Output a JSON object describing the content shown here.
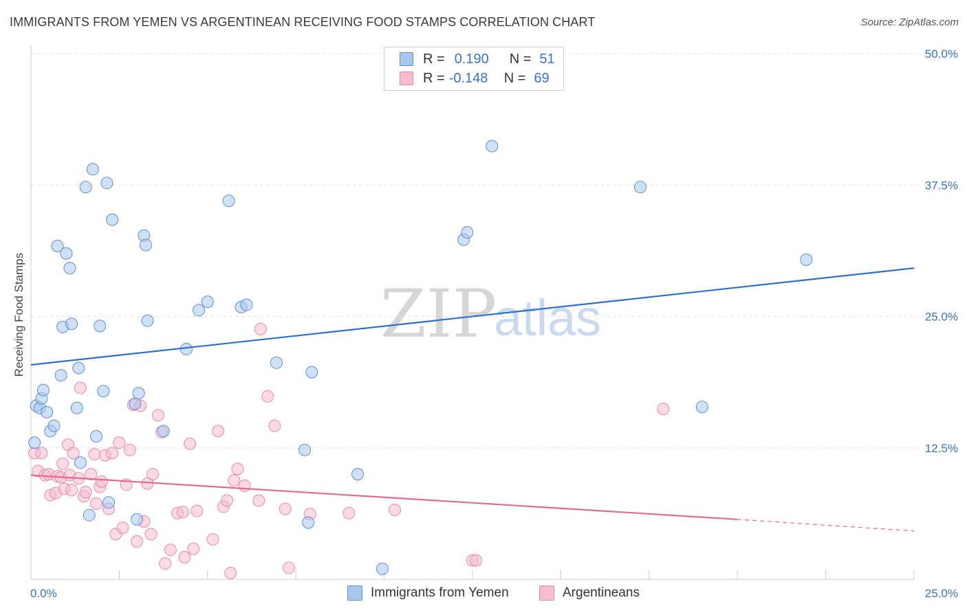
{
  "title": "IMMIGRANTS FROM YEMEN VS ARGENTINEAN RECEIVING FOOD STAMPS CORRELATION CHART",
  "source": "Source: ZipAtlas.com",
  "watermark": {
    "zip": "ZIP",
    "atlas": "atlas"
  },
  "legend_top": {
    "rows": [
      {
        "r_label": "R =",
        "r_value": "0.190",
        "n_label": "N =",
        "n_value": "51",
        "color": "#a9c8ef"
      },
      {
        "r_label": "R =",
        "r_value": "-0.148",
        "n_label": "N =",
        "n_value": "69",
        "color": "#f6bcd0"
      }
    ]
  },
  "legend_bottom": [
    {
      "label": "Immigrants from Yemen",
      "color": "#a9c8ef"
    },
    {
      "label": "Argentineans",
      "color": "#f6bcd0"
    }
  ],
  "chart_data": {
    "type": "scatter",
    "title": "IMMIGRANTS FROM YEMEN VS ARGENTINEAN RECEIVING FOOD STAMPS CORRELATION CHART",
    "xlabel": "",
    "ylabel": "Receiving Food Stamps",
    "xlim": [
      0,
      25
    ],
    "ylim": [
      0,
      50
    ],
    "x_tick_labels": [
      "0.0%",
      "25.0%"
    ],
    "y_ticks": [
      12.5,
      25.0,
      37.5,
      50.0
    ],
    "y_tick_labels": [
      "12.5%",
      "25.0%",
      "37.5%",
      "50.0%"
    ],
    "grid": "horizontal dashed",
    "colors": {
      "yemen": "#5b8fd6",
      "yemen_fill": "#a9c8ef",
      "arg": "#e889aa",
      "arg_fill": "#f6bcd0",
      "yemen_line": "#2f6fcc",
      "arg_line": "#e06a94"
    },
    "series": [
      {
        "name": "Immigrants from Yemen",
        "trend": {
          "x": [
            0,
            25
          ],
          "y": [
            20.4,
            29.6
          ]
        },
        "points": [
          [
            0.1,
            13.0
          ],
          [
            0.15,
            16.5
          ],
          [
            0.25,
            16.3
          ],
          [
            0.3,
            17.2
          ],
          [
            0.35,
            18.0
          ],
          [
            0.45,
            15.9
          ],
          [
            0.55,
            14.1
          ],
          [
            0.65,
            14.6
          ],
          [
            0.75,
            31.7
          ],
          [
            0.85,
            19.4
          ],
          [
            0.9,
            24.0
          ],
          [
            1.0,
            31.0
          ],
          [
            1.1,
            29.6
          ],
          [
            1.15,
            24.3
          ],
          [
            1.3,
            16.3
          ],
          [
            1.35,
            20.1
          ],
          [
            1.4,
            11.1
          ],
          [
            1.55,
            37.3
          ],
          [
            1.65,
            6.1
          ],
          [
            1.75,
            39.0
          ],
          [
            1.85,
            13.6
          ],
          [
            1.95,
            24.1
          ],
          [
            2.05,
            17.9
          ],
          [
            2.15,
            37.7
          ],
          [
            2.2,
            7.3
          ],
          [
            2.3,
            34.2
          ],
          [
            2.95,
            16.7
          ],
          [
            3.0,
            5.7
          ],
          [
            3.05,
            17.7
          ],
          [
            3.2,
            32.7
          ],
          [
            3.25,
            31.8
          ],
          [
            3.3,
            24.6
          ],
          [
            3.75,
            14.1
          ],
          [
            4.4,
            21.9
          ],
          [
            4.75,
            25.6
          ],
          [
            5.0,
            26.4
          ],
          [
            5.6,
            36.0
          ],
          [
            5.95,
            25.9
          ],
          [
            6.1,
            26.1
          ],
          [
            6.95,
            20.6
          ],
          [
            7.75,
            12.3
          ],
          [
            7.85,
            5.4
          ],
          [
            7.95,
            19.7
          ],
          [
            9.25,
            10.0
          ],
          [
            9.95,
            1.0
          ],
          [
            12.25,
            32.3
          ],
          [
            12.35,
            33.0
          ],
          [
            13.05,
            41.2
          ],
          [
            17.25,
            37.3
          ],
          [
            21.95,
            30.4
          ],
          [
            19.0,
            16.4
          ]
        ]
      },
      {
        "name": "Argentineans",
        "trend": {
          "x": [
            0,
            20
          ],
          "y": [
            9.9,
            5.7
          ]
        },
        "trend_dashed": {
          "x": [
            20,
            25
          ],
          "y": [
            5.7,
            4.6
          ]
        },
        "points": [
          [
            0.1,
            12.0
          ],
          [
            0.2,
            10.3
          ],
          [
            0.3,
            12.0
          ],
          [
            0.4,
            9.9
          ],
          [
            0.5,
            10.0
          ],
          [
            0.55,
            8.0
          ],
          [
            0.7,
            8.2
          ],
          [
            0.75,
            9.8
          ],
          [
            0.85,
            9.7
          ],
          [
            0.9,
            11.0
          ],
          [
            0.95,
            8.6
          ],
          [
            1.05,
            12.8
          ],
          [
            1.1,
            9.9
          ],
          [
            1.15,
            8.5
          ],
          [
            1.2,
            12.0
          ],
          [
            1.35,
            9.6
          ],
          [
            1.4,
            18.2
          ],
          [
            1.5,
            7.9
          ],
          [
            1.55,
            8.3
          ],
          [
            1.7,
            10.0
          ],
          [
            1.8,
            11.9
          ],
          [
            1.85,
            7.2
          ],
          [
            1.95,
            8.8
          ],
          [
            2.0,
            9.3
          ],
          [
            2.1,
            11.8
          ],
          [
            2.2,
            6.7
          ],
          [
            2.3,
            12.0
          ],
          [
            2.4,
            4.3
          ],
          [
            2.5,
            13.0
          ],
          [
            2.6,
            4.9
          ],
          [
            2.7,
            9.0
          ],
          [
            2.8,
            12.3
          ],
          [
            2.9,
            16.6
          ],
          [
            3.0,
            3.6
          ],
          [
            3.1,
            16.5
          ],
          [
            3.2,
            5.5
          ],
          [
            3.3,
            9.1
          ],
          [
            3.4,
            4.3
          ],
          [
            3.45,
            10.0
          ],
          [
            3.6,
            15.6
          ],
          [
            3.7,
            14.0
          ],
          [
            3.8,
            1.5
          ],
          [
            3.95,
            2.8
          ],
          [
            4.15,
            6.3
          ],
          [
            4.3,
            6.4
          ],
          [
            4.35,
            2.1
          ],
          [
            4.5,
            12.9
          ],
          [
            4.6,
            2.9
          ],
          [
            4.7,
            6.5
          ],
          [
            5.15,
            3.8
          ],
          [
            5.3,
            14.1
          ],
          [
            5.45,
            6.9
          ],
          [
            5.55,
            7.5
          ],
          [
            5.65,
            0.6
          ],
          [
            5.75,
            9.4
          ],
          [
            5.85,
            10.5
          ],
          [
            6.05,
            8.9
          ],
          [
            6.45,
            7.5
          ],
          [
            6.5,
            23.8
          ],
          [
            6.7,
            17.4
          ],
          [
            6.9,
            14.6
          ],
          [
            7.2,
            6.7
          ],
          [
            7.3,
            1.1
          ],
          [
            7.9,
            6.2
          ],
          [
            9.0,
            6.3
          ],
          [
            10.3,
            6.6
          ],
          [
            12.5,
            1.8
          ],
          [
            12.6,
            1.8
          ],
          [
            17.9,
            16.2
          ]
        ]
      }
    ]
  }
}
